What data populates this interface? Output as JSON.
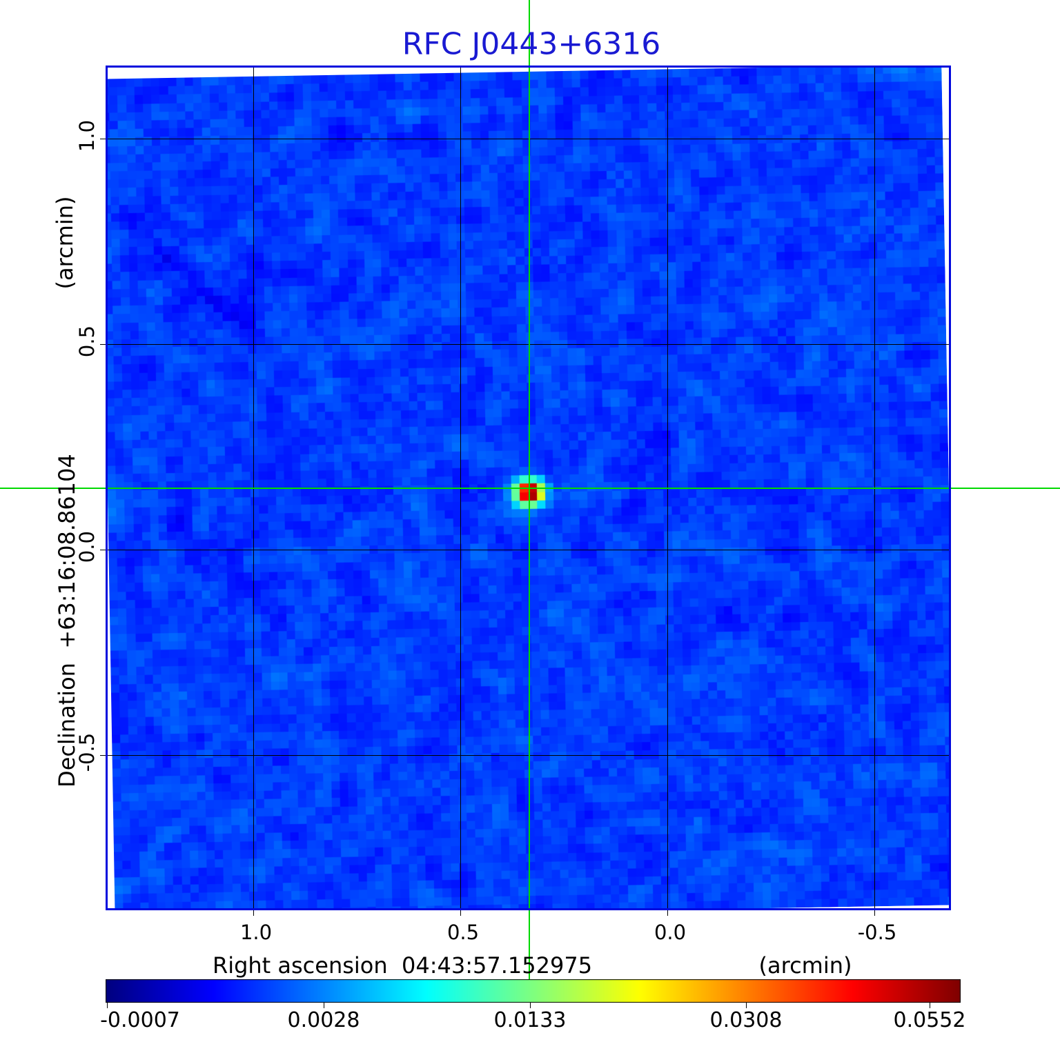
{
  "title": "RFC J0443+6316",
  "colors": {
    "title": "#1a1ad2",
    "frame": "#0008dd",
    "grid": "#000000",
    "crosshair": "#00d900",
    "text": "#000000",
    "background": "#ffffff"
  },
  "x_axis": {
    "label": "Right ascension  04:43:57.152975",
    "unit": "(arcmin)",
    "ticks": [
      {
        "value": 1.0,
        "label": "1.0"
      },
      {
        "value": 0.5,
        "label": "0.5"
      },
      {
        "value": 0.0,
        "label": "0.0"
      },
      {
        "value": -0.5,
        "label": "-0.5"
      }
    ],
    "range": [
      1.3517,
      -0.6803
    ]
  },
  "y_axis": {
    "label": "Declination  +63:16:08.86104",
    "unit": "(arcmin)",
    "ticks": [
      {
        "value": 1.0,
        "label": "1.0"
      },
      {
        "value": 0.5,
        "label": "0.5"
      },
      {
        "value": 0.0,
        "label": "0.0"
      },
      {
        "value": -0.5,
        "label": "-0.5"
      }
    ],
    "range": [
      1.1728,
      -0.8725
    ]
  },
  "crosshair": {
    "x_arcmin": 0.333,
    "y_arcmin": 0.1485
  },
  "colorbar": {
    "ticks": [
      {
        "label": "-0.0007",
        "value": -0.0007,
        "f": 0.04,
        "tf": 0.002
      },
      {
        "label": "0.0028",
        "value": 0.0028,
        "f": 0.255,
        "tf": 0.255
      },
      {
        "label": "0.0133",
        "value": 0.0133,
        "f": 0.496,
        "tf": 0.496
      },
      {
        "label": "0.0308",
        "value": 0.0308,
        "f": 0.749,
        "tf": 0.749
      },
      {
        "label": "0.0552",
        "value": 0.0552,
        "f": 0.964,
        "tf": 0.964
      }
    ]
  },
  "chart_data": {
    "type": "heatmap",
    "title": "RFC J0443+6316",
    "xlabel": "Right ascension  04:43:57.152975 (arcmin)",
    "ylabel": "Declination  +63:16:08.86104 (arcmin)",
    "x_ticks_arcmin": [
      1.0,
      0.5,
      0.0,
      -0.5
    ],
    "y_ticks_arcmin": [
      1.0,
      0.5,
      0.0,
      -0.5
    ],
    "x_range_arcmin": [
      1.35,
      -0.68
    ],
    "y_range_arcmin": [
      1.17,
      -0.87
    ],
    "grid": true,
    "colormap": "jet",
    "intensity_min": -0.0007,
    "intensity_max": 0.0552,
    "colorbar_tick_values": [
      -0.0007,
      0.0028,
      0.0133,
      0.0308,
      0.0552
    ],
    "source": {
      "name": "RFC J0443+6316",
      "ra": "04:43:57.152975",
      "dec": "+63:16:08.86104",
      "offset_arcmin": [
        0.333,
        0.1485
      ],
      "peak_value": 0.0552,
      "marker": "green crosshair spanning full image"
    },
    "background_noise_level": 0.002,
    "image_rotation_deg": -1.0
  }
}
